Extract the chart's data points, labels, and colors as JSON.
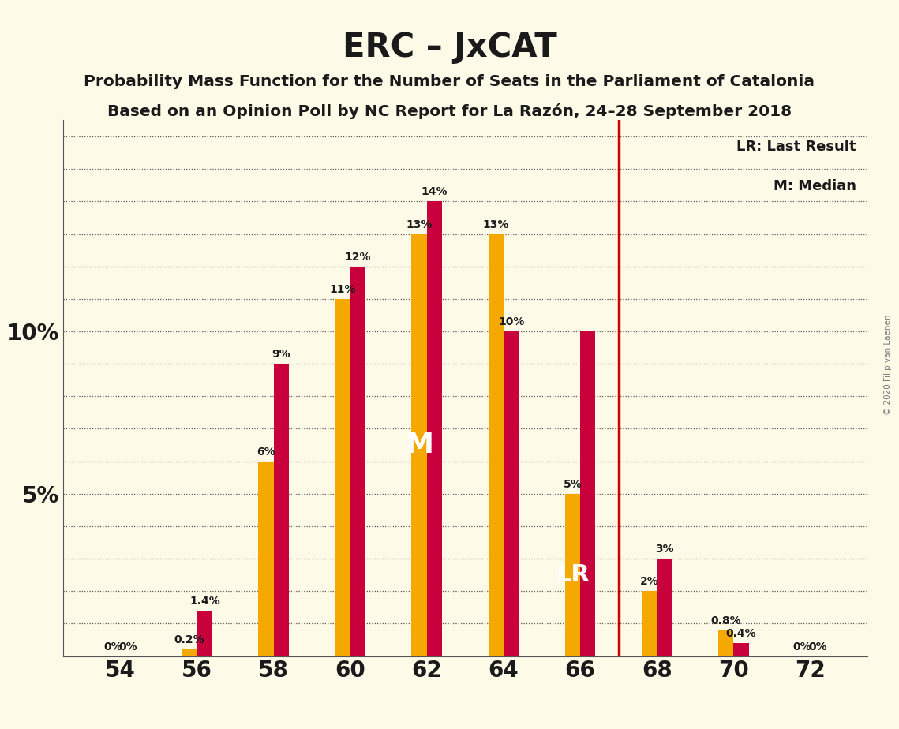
{
  "title": "ERC – JxCAT",
  "subtitle1": "Probability Mass Function for the Number of Seats in the Parliament of Catalonia",
  "subtitle2": "Based on an Opinion Poll by NC Report for La Razón, 24–28 September 2018",
  "copyright": "© 2020 Filip van Laenen",
  "background_color": "#FDFAE8",
  "bar_color_orange": "#F5A800",
  "bar_color_red": "#C8003C",
  "lr_line_color": "#CC0000",
  "lr_line_x": 67.0,
  "seats": [
    54,
    56,
    58,
    60,
    62,
    64,
    66,
    68,
    70,
    72
  ],
  "erc_values": [
    0.0,
    0.2,
    6.0,
    11.0,
    13.0,
    13.0,
    5.0,
    2.0,
    0.8,
    0.0
  ],
  "jxcat_values": [
    0.0,
    1.4,
    9.0,
    12.0,
    14.0,
    10.0,
    10.0,
    3.0,
    0.4,
    0.0
  ],
  "erc_labels": [
    "0%",
    "0.2%",
    "6%",
    "11%",
    "13%",
    "13%",
    "5%",
    "2%",
    "0.8%",
    "0%"
  ],
  "jxcat_labels": [
    "",
    "1.4%",
    "9%",
    "12%",
    "14%",
    "10%",
    "",
    "3%",
    "0.4%",
    "0%"
  ],
  "median_label_seat": 62,
  "lr_label_seat": 66,
  "bar_width": 0.8,
  "xlim": [
    52.5,
    73.5
  ],
  "ylim": [
    0,
    16.5
  ],
  "xticks": [
    54,
    56,
    58,
    60,
    62,
    64,
    66,
    68,
    70,
    72
  ],
  "yticks": [
    0,
    5,
    10
  ],
  "ytick_labels": [
    "",
    "5%",
    "10%"
  ],
  "grid_lines": [
    1,
    2,
    3,
    4,
    5,
    6,
    7,
    8,
    9,
    10,
    11,
    12,
    13,
    14,
    15,
    16
  ],
  "label_fontsize": 10,
  "tick_fontsize": 20
}
